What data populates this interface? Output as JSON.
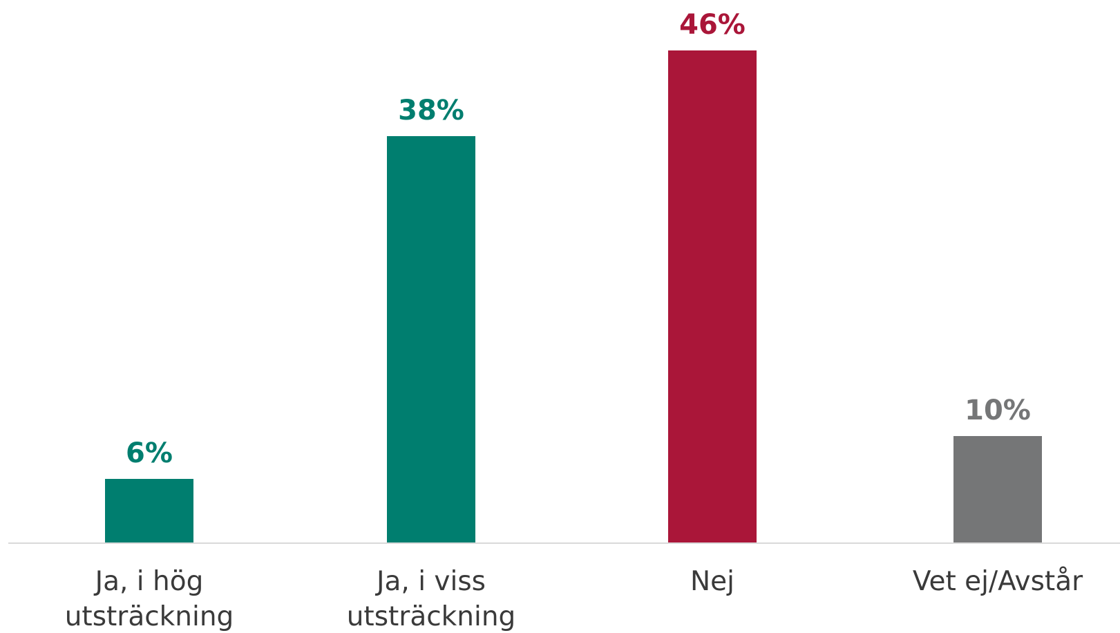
{
  "chart_data": {
    "type": "bar",
    "categories": [
      [
        "Ja, i hög",
        "utsträckning"
      ],
      [
        "Ja, i viss",
        "utsträckning"
      ],
      [
        "Nej"
      ],
      [
        "Vet ej/Avstår"
      ]
    ],
    "values": [
      6,
      38,
      46,
      10
    ],
    "value_labels": [
      "6%",
      "38%",
      "46%",
      "10%"
    ],
    "colors": [
      "#007e6f",
      "#007e6f",
      "#aa1639",
      "#757677"
    ],
    "ylim": [
      0,
      50
    ],
    "grid": false,
    "legend": "none",
    "title": "",
    "xlabel": "",
    "ylabel": ""
  }
}
